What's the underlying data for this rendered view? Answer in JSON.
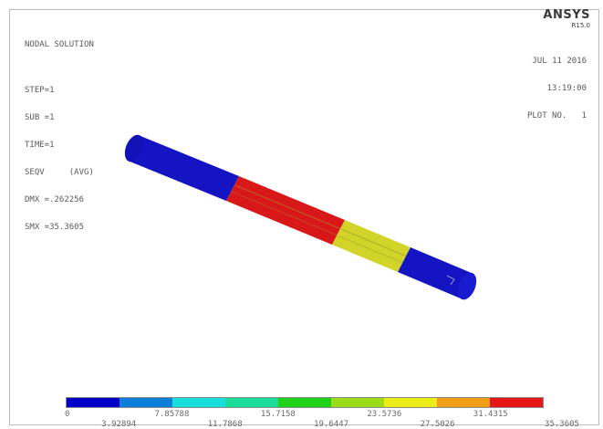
{
  "header": {
    "info_lines": [
      "NODAL SOLUTION",
      "",
      "STEP=1",
      "SUB =1",
      "TIME=1",
      "SEQV     (AVG)",
      "DMX =.262256",
      "SMX =35.3605"
    ],
    "brand": "ANSYS",
    "release": "R15.0",
    "date": "JUL 11 2016",
    "time": "13:19:00",
    "plot_label": "PLOT NO.   1"
  },
  "legend": {
    "colors": [
      "#0000c8",
      "#0e7fd8",
      "#19dede",
      "#19dc9a",
      "#21d21a",
      "#9cdc19",
      "#ecec17",
      "#f0a015",
      "#e41616"
    ],
    "labels_top": [
      "0",
      "7.85788",
      "15.7158",
      "23.5736",
      "31.4315"
    ],
    "labels_bottom": [
      "3.92894",
      "11.7868",
      "19.6447",
      "27.5026",
      "35.3605"
    ]
  },
  "model": {
    "segments": [
      {
        "name": "shaft-end-left",
        "color": "#1212c0"
      },
      {
        "name": "shaft-mid-red",
        "color": "#d81818"
      },
      {
        "name": "shaft-mid-yellow",
        "color": "#d6d62a"
      },
      {
        "name": "shaft-end-right",
        "color": "#1212c0"
      }
    ]
  }
}
